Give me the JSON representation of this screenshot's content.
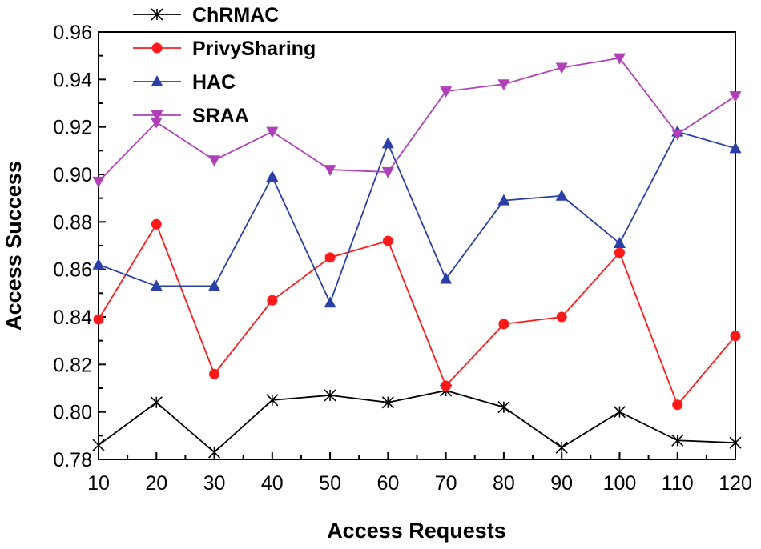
{
  "chart_data": {
    "type": "line",
    "title": "",
    "xlabel": "Access Requests",
    "ylabel": "Access Success",
    "x": [
      10,
      20,
      30,
      40,
      50,
      60,
      70,
      80,
      90,
      100,
      110,
      120
    ],
    "xticks": [
      "10",
      "20",
      "30",
      "40",
      "50",
      "60",
      "70",
      "80",
      "90",
      "100",
      "110",
      "120"
    ],
    "xlim": [
      10,
      120
    ],
    "yticks": [
      "0.78",
      "0.80",
      "0.82",
      "0.84",
      "0.86",
      "0.88",
      "0.90",
      "0.92",
      "0.94",
      "0.96"
    ],
    "ylim": [
      0.78,
      0.96
    ],
    "grid": false,
    "legend_position": "top-left",
    "series": [
      {
        "name": "ChRMAC",
        "color": "#000000",
        "marker": "asterisk",
        "values": [
          0.786,
          0.804,
          0.783,
          0.805,
          0.807,
          0.804,
          0.809,
          0.802,
          0.785,
          0.8,
          0.788,
          0.787
        ]
      },
      {
        "name": "PrivySharing",
        "color": "#ff1a1a",
        "marker": "circle",
        "values": [
          0.839,
          0.879,
          0.816,
          0.847,
          0.865,
          0.872,
          0.811,
          0.837,
          0.84,
          0.867,
          0.803,
          0.832
        ]
      },
      {
        "name": "HAC",
        "color": "#2a3fa8",
        "marker": "triangle-up",
        "values": [
          0.862,
          0.853,
          0.853,
          0.899,
          0.846,
          0.913,
          0.856,
          0.889,
          0.891,
          0.871,
          0.918,
          0.911
        ]
      },
      {
        "name": "SRAA",
        "color": "#b040b8",
        "marker": "triangle-down",
        "values": [
          0.897,
          0.922,
          0.906,
          0.918,
          0.902,
          0.901,
          0.935,
          0.938,
          0.945,
          0.949,
          0.917,
          0.933
        ]
      }
    ]
  }
}
